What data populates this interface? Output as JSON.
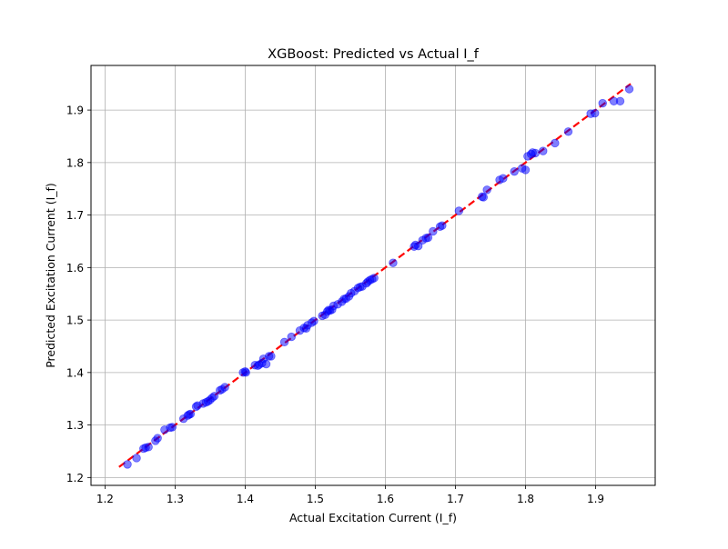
{
  "chart_data": {
    "type": "scatter",
    "title": "XGBoost: Predicted vs Actual I_f",
    "xlabel": "Actual Excitation Current (I_f)",
    "ylabel": "Predicted Excitation Current (I_f)",
    "xlim": [
      1.18,
      1.985
    ],
    "ylim": [
      1.185,
      1.985
    ],
    "xticks": [
      1.2,
      1.3,
      1.4,
      1.5,
      1.6,
      1.7,
      1.8,
      1.9
    ],
    "yticks": [
      1.2,
      1.3,
      1.4,
      1.5,
      1.6,
      1.7,
      1.8,
      1.9
    ],
    "xtick_labels": [
      "1.2",
      "1.3",
      "1.4",
      "1.5",
      "1.6",
      "1.7",
      "1.8",
      "1.9"
    ],
    "ytick_labels": [
      "1.2",
      "1.3",
      "1.4",
      "1.5",
      "1.6",
      "1.7",
      "1.8",
      "1.9"
    ],
    "grid": true,
    "legend": "none",
    "reference_line": {
      "x": [
        1.22,
        1.95
      ],
      "y": [
        1.22,
        1.95
      ],
      "style": "dashed",
      "color": "#ff0000"
    },
    "point_color": "#0000ff",
    "point_alpha": 0.5,
    "series": [
      {
        "points": [
          [
            1.232,
            1.225
          ],
          [
            1.245,
            1.237
          ],
          [
            1.255,
            1.255
          ],
          [
            1.258,
            1.257
          ],
          [
            1.262,
            1.258
          ],
          [
            1.272,
            1.27
          ],
          [
            1.275,
            1.275
          ],
          [
            1.285,
            1.291
          ],
          [
            1.293,
            1.295
          ],
          [
            1.296,
            1.296
          ],
          [
            1.312,
            1.312
          ],
          [
            1.318,
            1.318
          ],
          [
            1.32,
            1.32
          ],
          [
            1.322,
            1.321
          ],
          [
            1.33,
            1.335
          ],
          [
            1.332,
            1.337
          ],
          [
            1.34,
            1.341
          ],
          [
            1.344,
            1.343
          ],
          [
            1.347,
            1.345
          ],
          [
            1.35,
            1.348
          ],
          [
            1.353,
            1.352
          ],
          [
            1.356,
            1.355
          ],
          [
            1.364,
            1.366
          ],
          [
            1.367,
            1.368
          ],
          [
            1.371,
            1.372
          ],
          [
            1.397,
            1.4
          ],
          [
            1.4,
            1.402
          ],
          [
            1.401,
            1.4
          ],
          [
            1.414,
            1.414
          ],
          [
            1.418,
            1.413
          ],
          [
            1.42,
            1.415
          ],
          [
            1.424,
            1.418
          ],
          [
            1.426,
            1.426
          ],
          [
            1.43,
            1.416
          ],
          [
            1.434,
            1.431
          ],
          [
            1.437,
            1.431
          ],
          [
            1.456,
            1.458
          ],
          [
            1.466,
            1.468
          ],
          [
            1.478,
            1.48
          ],
          [
            1.484,
            1.485
          ],
          [
            1.487,
            1.484
          ],
          [
            1.489,
            1.49
          ],
          [
            1.495,
            1.495
          ],
          [
            1.498,
            1.498
          ],
          [
            1.51,
            1.508
          ],
          [
            1.514,
            1.51
          ],
          [
            1.517,
            1.516
          ],
          [
            1.519,
            1.519
          ],
          [
            1.521,
            1.518
          ],
          [
            1.524,
            1.52
          ],
          [
            1.526,
            1.527
          ],
          [
            1.532,
            1.53
          ],
          [
            1.538,
            1.535
          ],
          [
            1.541,
            1.54
          ],
          [
            1.544,
            1.541
          ],
          [
            1.548,
            1.545
          ],
          [
            1.551,
            1.551
          ],
          [
            1.556,
            1.555
          ],
          [
            1.561,
            1.561
          ],
          [
            1.564,
            1.563
          ],
          [
            1.567,
            1.564
          ],
          [
            1.573,
            1.57
          ],
          [
            1.575,
            1.573
          ],
          [
            1.578,
            1.576
          ],
          [
            1.581,
            1.578
          ],
          [
            1.584,
            1.58
          ],
          [
            1.611,
            1.609
          ],
          [
            1.641,
            1.64
          ],
          [
            1.643,
            1.643
          ],
          [
            1.647,
            1.641
          ],
          [
            1.653,
            1.652
          ],
          [
            1.658,
            1.656
          ],
          [
            1.661,
            1.657
          ],
          [
            1.668,
            1.669
          ],
          [
            1.678,
            1.678
          ],
          [
            1.681,
            1.68
          ],
          [
            1.705,
            1.708
          ],
          [
            1.738,
            1.735
          ],
          [
            1.74,
            1.734
          ],
          [
            1.745,
            1.748
          ],
          [
            1.763,
            1.767
          ],
          [
            1.768,
            1.77
          ],
          [
            1.784,
            1.783
          ],
          [
            1.795,
            1.789
          ],
          [
            1.8,
            1.786
          ],
          [
            1.803,
            1.812
          ],
          [
            1.808,
            1.816
          ],
          [
            1.81,
            1.819
          ],
          [
            1.814,
            1.818
          ],
          [
            1.825,
            1.822
          ],
          [
            1.842,
            1.837
          ],
          [
            1.861,
            1.859
          ],
          [
            1.893,
            1.893
          ],
          [
            1.899,
            1.894
          ],
          [
            1.91,
            1.913
          ],
          [
            1.926,
            1.917
          ],
          [
            1.935,
            1.917
          ],
          [
            1.948,
            1.94
          ]
        ]
      }
    ]
  }
}
